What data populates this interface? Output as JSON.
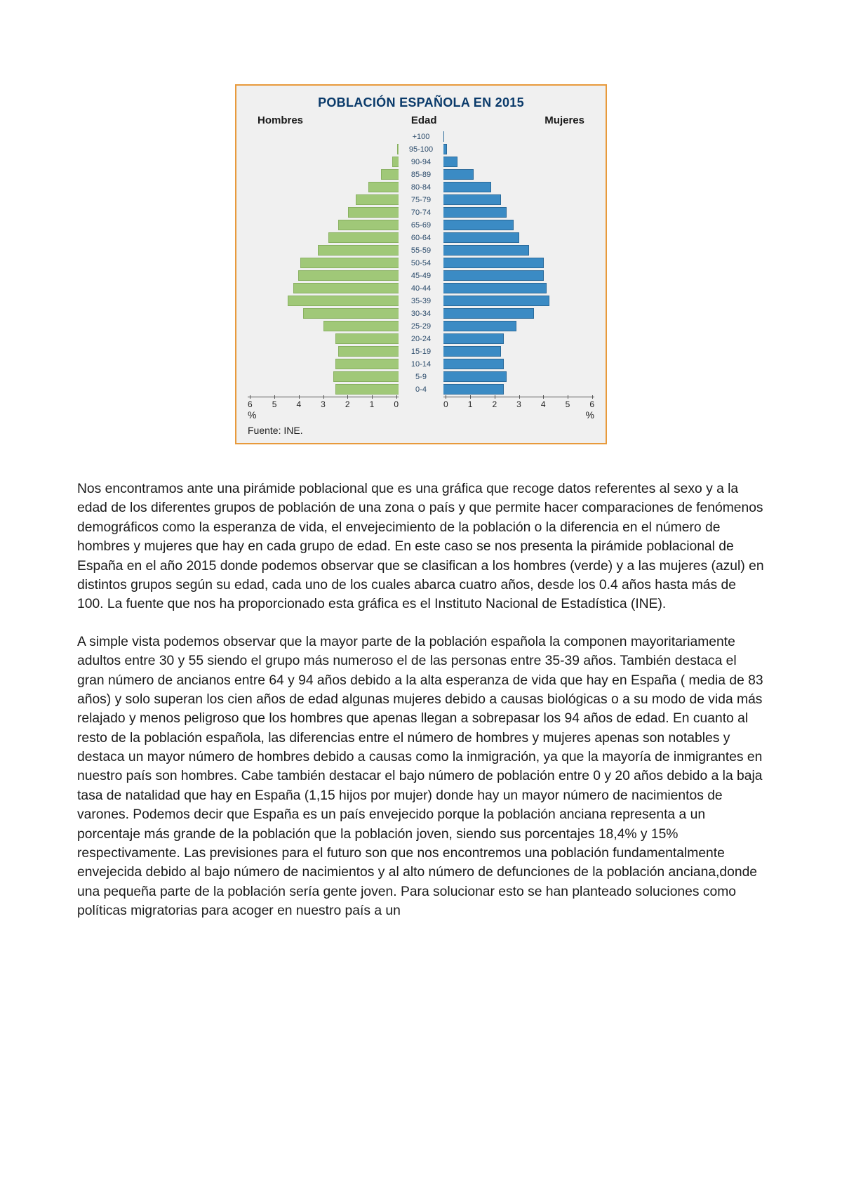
{
  "chart": {
    "type": "population-pyramid",
    "title": "POBLACIÓN ESPAÑOLA EN 2015",
    "left_label": "Hombres",
    "center_label": "Edad",
    "right_label": "Mujeres",
    "source": "Fuente: INE.",
    "pct_symbol": "%",
    "frame_border_color": "#e89a3c",
    "frame_bg": "#f0f0f0",
    "title_color": "#0a3a6a",
    "age_label_color": "#2a4a6a",
    "left_bar_color": "#a0c878",
    "left_bar_border": "#88b060",
    "right_bar_color": "#3b8bc4",
    "right_bar_border": "#2a6a9a",
    "axis_color": "#555555",
    "max_pct": 6,
    "x_ticks_left": [
      "6",
      "5",
      "4",
      "3",
      "2",
      "1",
      "0"
    ],
    "x_ticks_right": [
      "0",
      "1",
      "2",
      "3",
      "4",
      "5",
      "6"
    ],
    "age_groups": [
      "+100",
      "95-100",
      "90-94",
      "85-89",
      "80-84",
      "75-79",
      "70-74",
      "65-69",
      "60-64",
      "55-59",
      "50-54",
      "45-49",
      "40-44",
      "35-39",
      "30-34",
      "25-29",
      "20-24",
      "15-19",
      "10-14",
      "5-9",
      "0-4"
    ],
    "hombres_pct": [
      0.0,
      0.05,
      0.25,
      0.7,
      1.2,
      1.7,
      2.0,
      2.4,
      2.8,
      3.2,
      3.9,
      4.0,
      4.2,
      4.4,
      3.8,
      3.0,
      2.5,
      2.4,
      2.5,
      2.6,
      2.5
    ],
    "mujeres_pct": [
      0.02,
      0.15,
      0.55,
      1.2,
      1.9,
      2.3,
      2.5,
      2.8,
      3.0,
      3.4,
      4.0,
      4.0,
      4.1,
      4.2,
      3.6,
      2.9,
      2.4,
      2.3,
      2.4,
      2.5,
      2.4
    ]
  },
  "paragraphs": [
    "Nos encontramos ante una pirámide poblacional que es una gráfica que recoge datos referentes al sexo y a la edad de los diferentes grupos de población de una zona o país y que permite hacer comparaciones de fenómenos demográficos como la esperanza de vida, el envejecimiento de la población o la diferencia en el número de hombres y mujeres que hay en cada grupo de edad. En este caso se nos presenta la pirámide poblacional de España en el año 2015 donde podemos observar que se clasifican a los hombres (verde) y a las mujeres (azul) en distintos grupos según su edad, cada uno de los cuales abarca cuatro años, desde los 0.4 años hasta más de 100. La fuente que nos ha proporcionado esta gráfica es el Instituto Nacional de Estadística (INE).",
    "A simple vista podemos observar que la mayor parte de la población española la componen mayoritariamente adultos entre 30 y 55 siendo el grupo más numeroso el de las personas entre 35-39 años. También destaca el gran número de ancianos entre 64 y 94 años debido a la alta esperanza de vida que hay en España ( media de 83 años) y solo superan los cien años de edad algunas mujeres debido a causas biológicas o a su modo de vida más relajado y menos peligroso que los hombres que apenas llegan a sobrepasar los 94 años de edad. En cuanto al resto de la población española, las diferencias entre el número de hombres y mujeres apenas son notables y destaca un mayor número de hombres debido a causas como la inmigración, ya que la mayoría de inmigrantes en nuestro país son hombres. Cabe también destacar el bajo número de población entre 0 y 20 años debido a la baja tasa de natalidad que hay en España (1,15 hijos por mujer) donde hay un mayor número de nacimientos de varones. Podemos decir que España es un país envejecido porque la población anciana representa a un porcentaje más grande de la población que la población joven, siendo sus porcentajes 18,4% y 15% respectivamente. Las previsiones para el futuro son que nos encontremos una población fundamentalmente envejecida debido al bajo número de nacimientos y al alto número de defunciones de la población anciana,donde una pequeña parte de la población sería gente joven. Para solucionar esto se han planteado soluciones como políticas migratorias para acoger en nuestro país a un"
  ]
}
